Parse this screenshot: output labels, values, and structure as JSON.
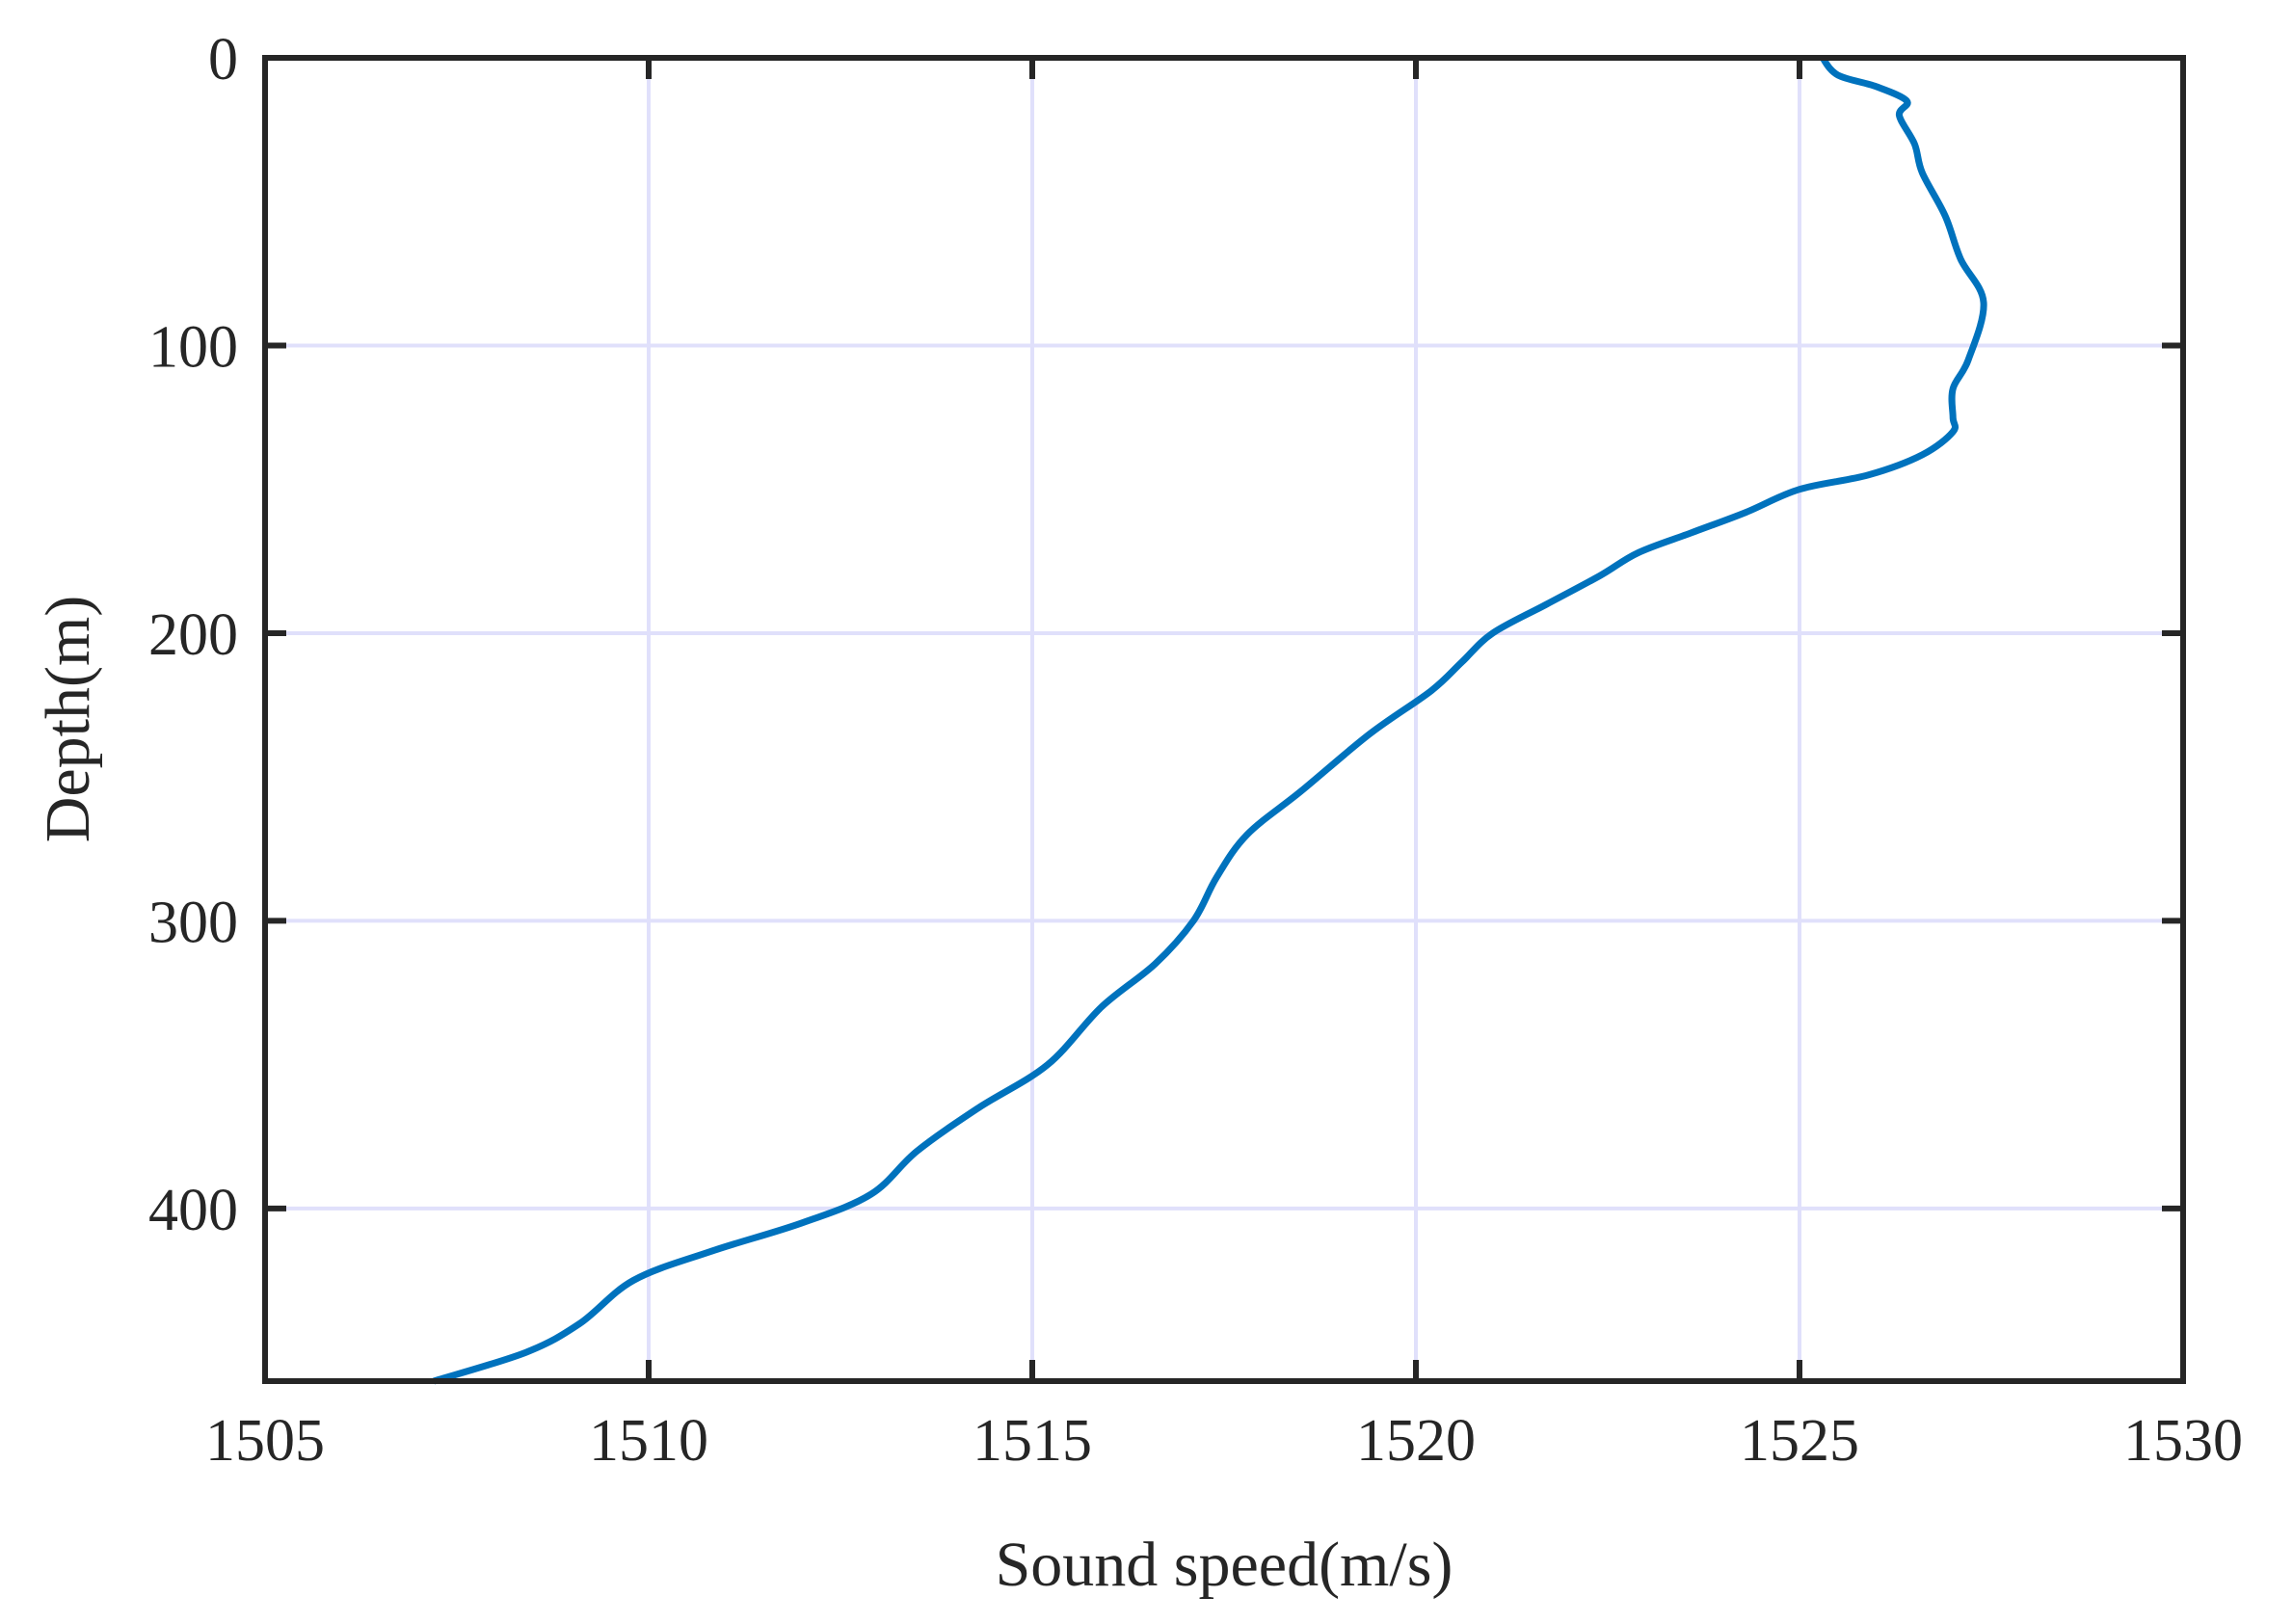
{
  "chart_data": {
    "type": "line",
    "title": "",
    "xlabel": "Sound speed(m/s)",
    "ylabel": "Depth(m)",
    "xlim": [
      1505,
      1530
    ],
    "ylim": [
      0,
      460
    ],
    "y_reversed": true,
    "grid": true,
    "xticks": [
      1505,
      1510,
      1515,
      1520,
      1525,
      1530
    ],
    "yticks": [
      0,
      100,
      200,
      300,
      400
    ],
    "xtick_labels": [
      "1505",
      "1510",
      "1515",
      "1520",
      "1525",
      "1530"
    ],
    "ytick_labels": [
      "0",
      "100",
      "200",
      "300",
      "400"
    ],
    "colors": {
      "line": "#0072BD",
      "grid": "#e0e0fb",
      "axes": "#262626"
    },
    "series": [
      {
        "x": [
          1525.3,
          1525.5,
          1526.0,
          1526.4,
          1526.3,
          1526.5,
          1526.6,
          1526.9,
          1527.1,
          1527.4,
          1527.2,
          1527.0,
          1527.0,
          1527.0,
          1526.6,
          1525.9,
          1525.0,
          1524.3,
          1523.6,
          1522.9,
          1522.4,
          1521.7,
          1521.0,
          1520.6,
          1520.2,
          1519.4,
          1518.5,
          1517.8,
          1517.4,
          1517.1,
          1516.6,
          1515.9,
          1515.2,
          1514.3,
          1513.5,
          1512.9,
          1512.0,
          1510.8,
          1509.8,
          1509.1,
          1508.4,
          1507.2
        ],
        "y": [
          0,
          6,
          10,
          15,
          20,
          30,
          40,
          55,
          70,
          85,
          105,
          115,
          125,
          130,
          138,
          145,
          150,
          158,
          165,
          172,
          180,
          190,
          200,
          210,
          220,
          235,
          255,
          270,
          285,
          300,
          315,
          330,
          350,
          365,
          380,
          395,
          405,
          415,
          425,
          440,
          450,
          460
        ]
      }
    ]
  }
}
